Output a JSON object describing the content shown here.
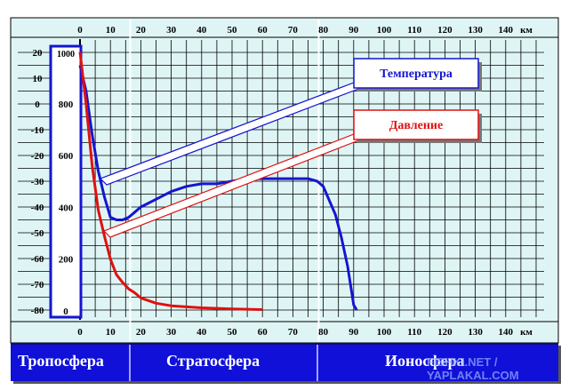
{
  "colors": {
    "background": "#dff5f5",
    "grid": "#000000",
    "temperature": "#1515d0",
    "pressure": "#e01010",
    "bar": "#1010d8"
  },
  "chart_data": {
    "type": "line",
    "x_axis": {
      "unit_label": "км",
      "ticks": [
        0,
        10,
        20,
        30,
        40,
        50,
        60,
        70,
        80,
        90,
        100,
        110,
        120,
        130,
        140
      ],
      "range": [
        0,
        145
      ]
    },
    "y_axis_temperature": {
      "ticks": [
        20,
        10,
        0,
        -10,
        -20,
        -30,
        -40,
        -50,
        -60,
        -70,
        -80
      ],
      "range": [
        -80,
        20
      ]
    },
    "y_axis_pressure": {
      "ticks": [
        1000,
        800,
        600,
        400,
        200,
        0
      ],
      "range": [
        0,
        1000
      ]
    },
    "series": [
      {
        "name": "Температура",
        "axis": "temperature",
        "x": [
          0,
          2,
          4,
          6,
          8,
          10,
          12,
          14,
          16,
          18,
          20,
          25,
          30,
          35,
          40,
          45,
          50,
          55,
          60,
          65,
          70,
          75,
          78,
          80,
          84,
          86,
          88,
          90,
          91
        ],
        "y": [
          15,
          5,
          -12,
          -26,
          -36,
          -44,
          -45,
          -45,
          -44,
          -42,
          -40,
          -37,
          -34,
          -32,
          -31,
          -31,
          -30,
          -29,
          -29,
          -29,
          -29,
          -29,
          -30,
          -32,
          -43,
          -52,
          -63,
          -78,
          -80
        ]
      },
      {
        "name": "Давление",
        "axis": "pressure",
        "x": [
          0,
          2,
          4,
          6,
          8,
          10,
          12,
          14,
          16,
          18,
          20,
          25,
          30,
          40,
          50,
          60
        ],
        "y": [
          1013,
          800,
          560,
          390,
          290,
          200,
          140,
          110,
          85,
          70,
          50,
          30,
          20,
          12,
          8,
          5
        ]
      }
    ],
    "legend": [
      {
        "label": "Температура",
        "series": "Температура"
      },
      {
        "label": "Давление",
        "series": "Давление"
      }
    ],
    "zones": [
      {
        "label": "Тропосфера"
      },
      {
        "label": "Стратосфера"
      },
      {
        "label": "Ионосфера"
      }
    ],
    "grid": true
  },
  "watermark": "FISHKI.NET / YAPLAKAL.COM"
}
